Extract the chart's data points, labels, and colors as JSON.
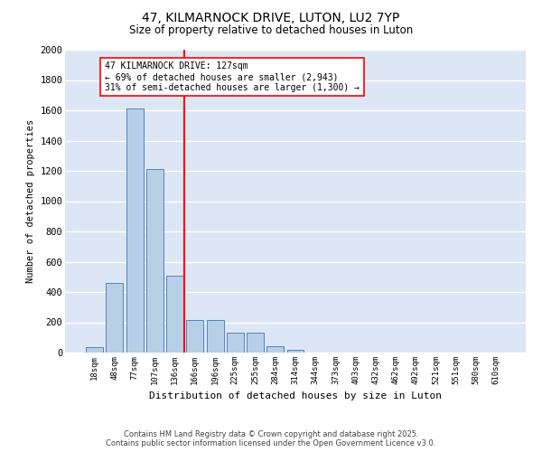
{
  "title1": "47, KILMARNOCK DRIVE, LUTON, LU2 7YP",
  "title2": "Size of property relative to detached houses in Luton",
  "xlabel": "Distribution of detached houses by size in Luton",
  "ylabel": "Number of detached properties",
  "bar_labels": [
    "18sqm",
    "48sqm",
    "77sqm",
    "107sqm",
    "136sqm",
    "166sqm",
    "196sqm",
    "225sqm",
    "255sqm",
    "284sqm",
    "314sqm",
    "344sqm",
    "373sqm",
    "403sqm",
    "432sqm",
    "462sqm",
    "492sqm",
    "521sqm",
    "551sqm",
    "580sqm",
    "610sqm"
  ],
  "bar_values": [
    35,
    460,
    1610,
    1210,
    510,
    215,
    215,
    130,
    130,
    40,
    20,
    0,
    0,
    0,
    0,
    0,
    0,
    0,
    0,
    0,
    0
  ],
  "bar_color": "#b8cfe8",
  "bar_edge_color": "#5585b5",
  "background_color": "#dce6f5",
  "vline_x": 4.45,
  "vline_color": "red",
  "annotation_title": "47 KILMARNOCK DRIVE: 127sqm",
  "annotation_line1": "← 69% of detached houses are smaller (2,943)",
  "annotation_line2": "31% of semi-detached houses are larger (1,300) →",
  "annotation_box_color": "red",
  "ylim": [
    0,
    2000
  ],
  "yticks": [
    0,
    200,
    400,
    600,
    800,
    1000,
    1200,
    1400,
    1600,
    1800,
    2000
  ],
  "copyright_line1": "Contains HM Land Registry data © Crown copyright and database right 2025.",
  "copyright_line2": "Contains public sector information licensed under the Open Government Licence v3.0."
}
